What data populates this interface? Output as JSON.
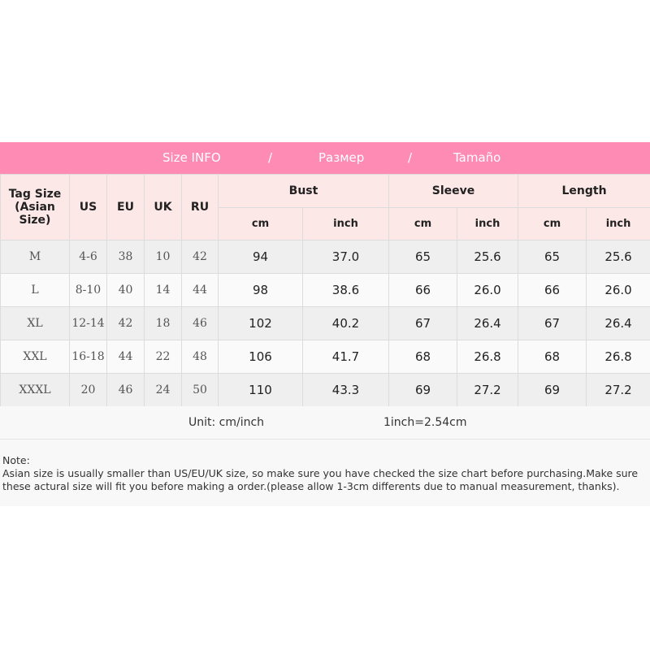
{
  "banner": {
    "en": "Size INFO",
    "sep1": "/",
    "ru": "Размер",
    "sep2": "/",
    "es": "Tamaño"
  },
  "headers": {
    "tag_size": "Tag Size (Asian Size)",
    "us": "US",
    "eu": "EU",
    "uk": "UK",
    "ru": "RU",
    "bust": "Bust",
    "sleeve": "Sleeve",
    "length": "Length",
    "cm": "cm",
    "inch": "inch"
  },
  "rows": [
    {
      "tag": "M",
      "us": "4-6",
      "eu": "38",
      "uk": "10",
      "ru": "42",
      "bust_cm": "94",
      "bust_in": "37.0",
      "sleeve_cm": "65",
      "sleeve_in": "25.6",
      "length_cm": "65",
      "length_in": "25.6"
    },
    {
      "tag": "L",
      "us": "8-10",
      "eu": "40",
      "uk": "14",
      "ru": "44",
      "bust_cm": "98",
      "bust_in": "38.6",
      "sleeve_cm": "66",
      "sleeve_in": "26.0",
      "length_cm": "66",
      "length_in": "26.0"
    },
    {
      "tag": "XL",
      "us": "12-14",
      "eu": "42",
      "uk": "18",
      "ru": "46",
      "bust_cm": "102",
      "bust_in": "40.2",
      "sleeve_cm": "67",
      "sleeve_in": "26.4",
      "length_cm": "67",
      "length_in": "26.4"
    },
    {
      "tag": "XXL",
      "us": "16-18",
      "eu": "44",
      "uk": "22",
      "ru": "48",
      "bust_cm": "106",
      "bust_in": "41.7",
      "sleeve_cm": "68",
      "sleeve_in": "26.8",
      "length_cm": "68",
      "length_in": "26.8"
    },
    {
      "tag": "XXXL",
      "us": "20",
      "eu": "46",
      "uk": "24",
      "ru": "50",
      "bust_cm": "110",
      "bust_in": "43.3",
      "sleeve_cm": "69",
      "sleeve_in": "27.2",
      "length_cm": "69",
      "length_in": "27.2"
    }
  ],
  "unit": {
    "label": "Unit: cm/inch",
    "conversion": "1inch=2.54cm"
  },
  "note": {
    "title": "Note:",
    "text": "Asian size is usually smaller than US/EU/UK size, so make sure you have checked the size chart before purchasing.Make sure these actural size will fit you before making a order.(please allow 1-3cm differents due to manual measurement, thanks)."
  },
  "colors": {
    "banner": "#fd8bb4",
    "header_bg": "#fde8e8"
  }
}
